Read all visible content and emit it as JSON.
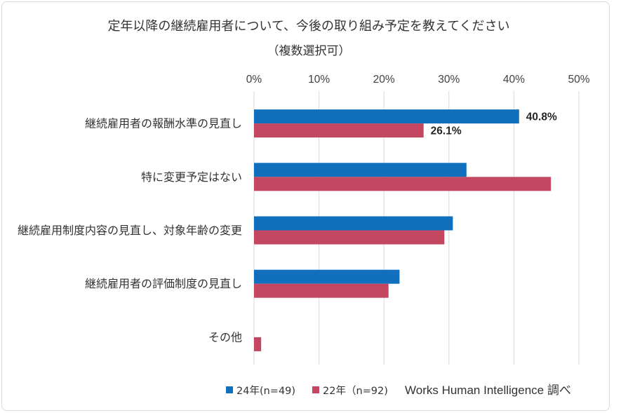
{
  "chart_data": {
    "type": "bar",
    "orientation": "horizontal",
    "title": "定年以降の継続雇用者について、今後の取り組み予定を教えてください",
    "subtitle": "（複数選択可）",
    "categories": [
      "継続雇用者の報酬水準の見直し",
      "特に変更予定はない",
      "継続雇用制度内容の見直し、対象年齢の変更",
      "継続雇用者の評価制度の見直し",
      "その他"
    ],
    "series": [
      {
        "name": "24年(n=49)",
        "color": "#1070BD",
        "values": [
          40.8,
          32.7,
          30.6,
          22.4,
          0
        ],
        "labels": [
          "40.8%",
          null,
          null,
          null,
          null
        ]
      },
      {
        "name": "22年（n=92)",
        "color": "#C34760",
        "values": [
          26.1,
          45.7,
          29.3,
          20.7,
          1.1
        ],
        "labels": [
          "26.1%",
          null,
          null,
          null,
          null
        ]
      }
    ],
    "xlim": [
      0,
      50
    ],
    "xticks": [
      0,
      10,
      20,
      30,
      40,
      50
    ],
    "xtick_labels": [
      "0%",
      "10%",
      "20%",
      "30%",
      "40%",
      "50%"
    ],
    "x_axis_position": "top",
    "grid": true,
    "legend_position": "bottom",
    "source": "Works Human Intelligence 調べ"
  }
}
